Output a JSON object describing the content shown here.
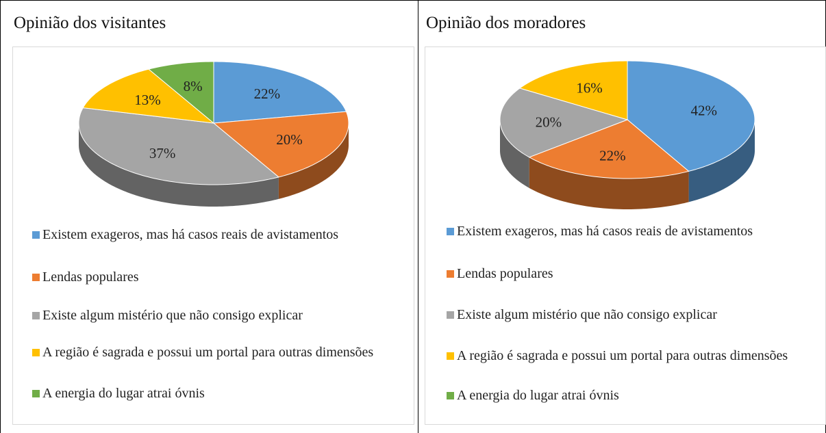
{
  "chart_data": [
    {
      "type": "pie3d",
      "title": "Opinião dos visitantes",
      "categories": [
        "Existem exageros, mas há casos reais de avistamentos",
        "Lendas populares",
        "Existe algum mistério que não consigo explicar",
        "A região é sagrada e possui um portal para outras dimensões",
        "A energia do lugar atrai óvnis"
      ],
      "values": [
        22,
        20,
        37,
        13,
        8
      ],
      "value_labels": [
        "22%",
        "20%",
        "37%",
        "13%",
        "8%"
      ],
      "colors": [
        "#5b9bd5",
        "#ed7d31",
        "#a5a5a5",
        "#ffc000",
        "#70ad47"
      ]
    },
    {
      "type": "pie3d",
      "title": "Opinião dos moradores",
      "categories": [
        "Existem exageros, mas há casos reais de avistamentos",
        "Lendas populares",
        "Existe algum mistério que não consigo explicar",
        "A região é sagrada e possui um portal para outras dimensões",
        "A energia do lugar atrai óvnis"
      ],
      "values": [
        42,
        22,
        20,
        16,
        0
      ],
      "value_labels": [
        "42%",
        "22%",
        "20%",
        "16%",
        null
      ],
      "colors": [
        "#5b9bd5",
        "#ed7d31",
        "#a5a5a5",
        "#ffc000",
        "#70ad47"
      ]
    }
  ]
}
